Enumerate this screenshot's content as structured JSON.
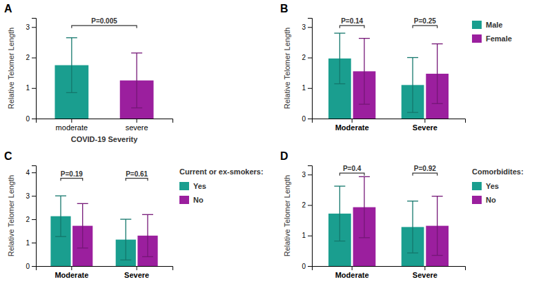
{
  "chart_data": [
    {
      "type": "bar",
      "title": "A",
      "categories": [
        "moderate",
        "severe"
      ],
      "values": [
        1.75,
        1.25
      ],
      "errors": [
        0.9,
        0.9
      ],
      "colors": [
        "#1a9e8f",
        "#9b1f9e"
      ],
      "xlabel": "COVID-19 Severity",
      "ylabel": "Relative Telomer Length",
      "ylim": [
        0,
        3.3
      ],
      "yticks": [
        0,
        1,
        2,
        3
      ],
      "annotations": [
        {
          "text": "P=0.005",
          "x": [
            "moderate",
            "severe"
          ],
          "y": 3.05
        }
      ]
    },
    {
      "type": "bar",
      "title": "B",
      "categories": [
        "Moderate",
        "Severe"
      ],
      "series": [
        {
          "name": "Male",
          "color": "#1a9e8f",
          "values": [
            1.97,
            1.1
          ],
          "errors": [
            0.83,
            0.9
          ]
        },
        {
          "name": "Female",
          "color": "#9b1f9e",
          "values": [
            1.55,
            1.47
          ],
          "errors": [
            1.08,
            0.98
          ]
        }
      ],
      "ylabel": "Relative Telomer Length",
      "ylim": [
        0,
        3.3
      ],
      "yticks": [
        0,
        1,
        2,
        3
      ],
      "annotations": [
        {
          "text": "P=0.14",
          "x": "Moderate",
          "y": 3.05
        },
        {
          "text": "P=0.25",
          "x": "Severe",
          "y": 3.05
        }
      ],
      "legend": "right"
    },
    {
      "type": "bar",
      "title": "C",
      "categories": [
        "Moderate",
        "Severe"
      ],
      "series": [
        {
          "name": "Yes",
          "color": "#1a9e8f",
          "values": [
            2.13,
            1.13
          ],
          "errors": [
            0.87,
            0.87
          ]
        },
        {
          "name": "No",
          "color": "#9b1f9e",
          "values": [
            1.72,
            1.3
          ],
          "errors": [
            0.95,
            0.9
          ]
        }
      ],
      "ylabel": "Relative Telomer Length",
      "ylim": [
        0,
        4.3
      ],
      "yticks": [
        0,
        1,
        2,
        3,
        4
      ],
      "annotations": [
        {
          "text": "P=0.19",
          "x": "Moderate",
          "y": 3.75
        },
        {
          "text": "P=0.61",
          "x": "Severe",
          "y": 3.75
        }
      ],
      "legend_title": "Current or ex-smokers:",
      "legend": "right"
    },
    {
      "type": "bar",
      "title": "D",
      "categories": [
        "Moderate",
        "Severe"
      ],
      "series": [
        {
          "name": "Yes",
          "color": "#1a9e8f",
          "values": [
            1.72,
            1.28
          ],
          "errors": [
            0.9,
            0.85
          ]
        },
        {
          "name": "No",
          "color": "#9b1f9e",
          "values": [
            1.93,
            1.32
          ],
          "errors": [
            1.0,
            0.97
          ]
        }
      ],
      "ylabel": "Relative Telomer Length",
      "ylim": [
        0,
        3.3
      ],
      "yticks": [
        0,
        1,
        2,
        3
      ],
      "annotations": [
        {
          "text": "P=0.4",
          "x": "Moderate",
          "y": 3.05
        },
        {
          "text": "P=0.92",
          "x": "Severe",
          "y": 3.05
        }
      ],
      "legend_title": "Comorbidites:",
      "legend": "right"
    }
  ]
}
